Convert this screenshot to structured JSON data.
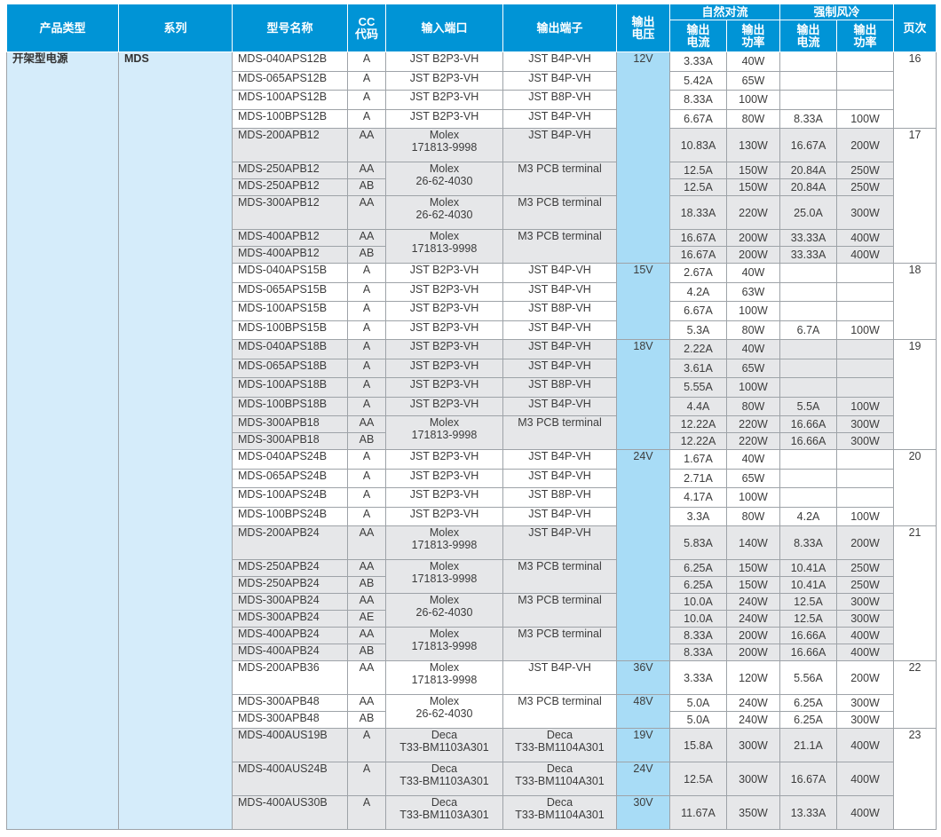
{
  "headers": {
    "product_type": "产品类型",
    "series": "系列",
    "model": "型号名称",
    "cc_code": "CC\n代码",
    "input_port": "输入端口",
    "output_terminal": "输出端子",
    "output_voltage": "输出\n电压",
    "natural": "自然对流",
    "forced": "强制风冷",
    "out_current": "输出\n电流",
    "out_power": "输出\n功率",
    "page": "页次"
  },
  "product_type": "开架型电源",
  "series": "MDS",
  "blocks": [
    {
      "voltage": "12V",
      "page": "16",
      "bg": "white",
      "rows": [
        [
          "MDS-040APS12B",
          "A",
          "JST B2P3-VH",
          "JST B4P-VH",
          "3.33A",
          "40W",
          "",
          ""
        ],
        [
          "MDS-065APS12B",
          "A",
          "JST B2P3-VH",
          "JST B4P-VH",
          "5.42A",
          "65W",
          "",
          ""
        ],
        [
          "MDS-100APS12B",
          "A",
          "JST B2P3-VH",
          "JST B8P-VH",
          "8.33A",
          "100W",
          "",
          ""
        ],
        [
          "MDS-100BPS12B",
          "A",
          "JST B2P3-VH",
          "JST B4P-VH",
          "6.67A",
          "80W",
          "8.33A",
          "100W"
        ]
      ]
    },
    {
      "voltage": "",
      "page": "17",
      "bg": "grey",
      "rows": [
        [
          "MDS-200APB12",
          "AA",
          "Molex\n171813-9998",
          "JST B4P-VH",
          "10.83A",
          "130W",
          "16.67A",
          "200W"
        ],
        [
          "MDS-250APB12",
          "AA",
          "Molex\n26-62-4030",
          "M3 PCB terminal",
          "12.5A",
          "150W",
          "20.84A",
          "250W"
        ],
        [
          "MDS-250APB12",
          "AB",
          "",
          "",
          "12.5A",
          "150W",
          "20.84A",
          "250W"
        ],
        [
          "MDS-300APB12",
          "AA",
          "Molex\n26-62-4030",
          "M3 PCB terminal",
          "18.33A",
          "220W",
          "25.0A",
          "300W"
        ],
        [
          "MDS-400APB12",
          "AA",
          "Molex\n171813-9998",
          "M3 PCB terminal",
          "16.67A",
          "200W",
          "33.33A",
          "400W"
        ],
        [
          "MDS-400APB12",
          "AB",
          "",
          "",
          "16.67A",
          "200W",
          "33.33A",
          "400W"
        ]
      ]
    },
    {
      "voltage": "15V",
      "page": "18",
      "bg": "white",
      "rows": [
        [
          "MDS-040APS15B",
          "A",
          "JST B2P3-VH",
          "JST B4P-VH",
          "2.67A",
          "40W",
          "",
          ""
        ],
        [
          "MDS-065APS15B",
          "A",
          "JST B2P3-VH",
          "JST B4P-VH",
          "4.2A",
          "63W",
          "",
          ""
        ],
        [
          "MDS-100APS15B",
          "A",
          "JST B2P3-VH",
          "JST B8P-VH",
          "6.67A",
          "100W",
          "",
          ""
        ],
        [
          "MDS-100BPS15B",
          "A",
          "JST B2P3-VH",
          "JST B4P-VH",
          "5.3A",
          "80W",
          "6.7A",
          "100W"
        ]
      ]
    },
    {
      "voltage": "18V",
      "page": "19",
      "bg": "grey",
      "rows": [
        [
          "MDS-040APS18B",
          "A",
          "JST B2P3-VH",
          "JST B4P-VH",
          "2.22A",
          "40W",
          "",
          ""
        ],
        [
          "MDS-065APS18B",
          "A",
          "JST B2P3-VH",
          "JST B4P-VH",
          "3.61A",
          "65W",
          "",
          ""
        ],
        [
          "MDS-100APS18B",
          "A",
          "JST B2P3-VH",
          "JST B8P-VH",
          "5.55A",
          "100W",
          "",
          ""
        ],
        [
          "MDS-100BPS18B",
          "A",
          "JST B2P3-VH",
          "JST B4P-VH",
          "4.4A",
          "80W",
          "5.5A",
          "100W"
        ],
        [
          "MDS-300APB18",
          "AA",
          "Molex\n171813-9998",
          "M3 PCB terminal",
          "12.22A",
          "220W",
          "16.66A",
          "300W"
        ],
        [
          "MDS-300APB18",
          "AB",
          "",
          "",
          "12.22A",
          "220W",
          "16.66A",
          "300W"
        ]
      ]
    },
    {
      "voltage": "24V",
      "page": "20",
      "bg": "white",
      "rows": [
        [
          "MDS-040APS24B",
          "A",
          "JST B2P3-VH",
          "JST B4P-VH",
          "1.67A",
          "40W",
          "",
          ""
        ],
        [
          "MDS-065APS24B",
          "A",
          "JST B2P3-VH",
          "JST B4P-VH",
          "2.71A",
          "65W",
          "",
          ""
        ],
        [
          "MDS-100APS24B",
          "A",
          "JST B2P3-VH",
          "JST B8P-VH",
          "4.17A",
          "100W",
          "",
          ""
        ],
        [
          "MDS-100BPS24B",
          "A",
          "JST B2P3-VH",
          "JST B4P-VH",
          "3.3A",
          "80W",
          "4.2A",
          "100W"
        ]
      ]
    },
    {
      "voltage": "",
      "page": "21",
      "bg": "grey",
      "rows": [
        [
          "MDS-200APB24",
          "AA",
          "Molex\n171813-9998",
          "JST B4P-VH",
          "5.83A",
          "140W",
          "8.33A",
          "200W"
        ],
        [
          "MDS-250APB24",
          "AA",
          "Molex\n171813-9998",
          "M3 PCB terminal",
          "6.25A",
          "150W",
          "10.41A",
          "250W"
        ],
        [
          "MDS-250APB24",
          "AB",
          "",
          "",
          "6.25A",
          "150W",
          "10.41A",
          "250W"
        ],
        [
          "MDS-300APB24",
          "AA",
          "Molex\n26-62-4030",
          "M3 PCB terminal",
          "10.0A",
          "240W",
          "12.5A",
          "300W"
        ],
        [
          "MDS-300APB24",
          "AE",
          "",
          "",
          "10.0A",
          "240W",
          "12.5A",
          "300W"
        ],
        [
          "MDS-400APB24",
          "AA",
          "Molex\n171813-9998",
          "M3 PCB terminal",
          "8.33A",
          "200W",
          "16.66A",
          "400W"
        ],
        [
          "MDS-400APB24",
          "AB",
          "",
          "",
          "8.33A",
          "200W",
          "16.66A",
          "400W"
        ]
      ]
    },
    {
      "voltage": "36V",
      "page": "22",
      "bg": "white",
      "rows": [
        [
          "MDS-200APB36",
          "AA",
          "Molex\n171813-9998",
          "JST B4P-VH",
          "3.33A",
          "120W",
          "5.56A",
          "200W"
        ]
      ]
    },
    {
      "voltage": "48V",
      "page": "",
      "bg": "white",
      "rows": [
        [
          "MDS-300APB48",
          "AA",
          "Molex\n26-62-4030",
          "M3 PCB terminal",
          "5.0A",
          "240W",
          "6.25A",
          "300W"
        ],
        [
          "MDS-300APB48",
          "AB",
          "",
          "",
          "5.0A",
          "240W",
          "6.25A",
          "300W"
        ]
      ]
    },
    {
      "voltage": "19V",
      "page": "23",
      "bg": "grey",
      "rows": [
        [
          "MDS-400AUS19B",
          "A",
          "Deca\nT33-BM1103A301",
          "Deca\nT33-BM1104A301",
          "15.8A",
          "300W",
          "21.1A",
          "400W"
        ]
      ]
    },
    {
      "voltage": "24V",
      "page": "",
      "bg": "grey",
      "rows": [
        [
          "MDS-400AUS24B",
          "A",
          "Deca\nT33-BM1103A301",
          "Deca\nT33-BM1104A301",
          "12.5A",
          "300W",
          "16.67A",
          "400W"
        ]
      ]
    },
    {
      "voltage": "30V",
      "page": "",
      "bg": "grey",
      "rows": [
        [
          "MDS-400AUS30B",
          "A",
          "Deca\nT33-BM1103A301",
          "Deca\nT33-BM1104A301",
          "11.67A",
          "350W",
          "13.33A",
          "400W"
        ]
      ]
    }
  ]
}
